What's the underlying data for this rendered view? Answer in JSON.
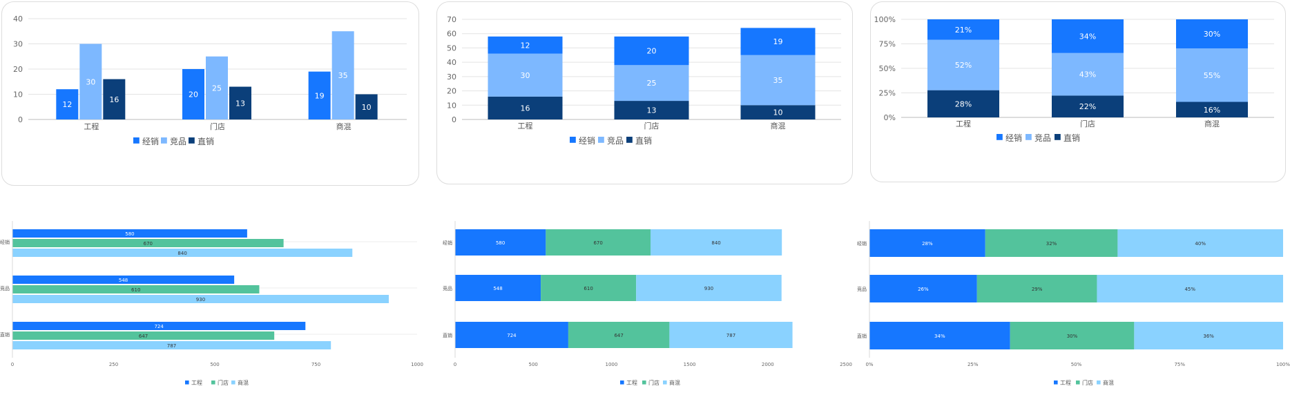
{
  "colors": {
    "blue": "#1677ff",
    "light_blue": "#7db8ff",
    "navy": "#0b3f7a",
    "green": "#53c39c",
    "sky": "#8ad2ff"
  },
  "chart_data": [
    {
      "id": "clustered-column",
      "type": "bar",
      "orientation": "vertical",
      "stacking": "none",
      "categories": [
        "工程",
        "门店",
        "商混"
      ],
      "series": [
        {
          "name": "经销",
          "values": [
            12,
            20,
            19
          ]
        },
        {
          "name": "竞品",
          "values": [
            30,
            25,
            35
          ]
        },
        {
          "name": "直销",
          "values": [
            16,
            13,
            10
          ]
        }
      ],
      "ylim": [
        0,
        40
      ],
      "yticks": [
        "0",
        "10",
        "20",
        "30",
        "40"
      ],
      "grid": true,
      "legend": "bottom"
    },
    {
      "id": "stacked-column",
      "type": "bar",
      "orientation": "vertical",
      "stacking": "stacked",
      "categories": [
        "工程",
        "门店",
        "商混"
      ],
      "series": [
        {
          "name": "直销",
          "values": [
            16,
            13,
            10
          ]
        },
        {
          "name": "竞品",
          "values": [
            30,
            25,
            35
          ]
        },
        {
          "name": "经销",
          "values": [
            12,
            20,
            19
          ]
        }
      ],
      "legend_order": [
        "经销",
        "竞品",
        "直销"
      ],
      "ylim": [
        0,
        70
      ],
      "yticks": [
        "0",
        "10",
        "20",
        "30",
        "40",
        "50",
        "60",
        "70"
      ],
      "grid": true,
      "legend": "bottom"
    },
    {
      "id": "percent-stacked-column",
      "type": "bar",
      "orientation": "vertical",
      "stacking": "percent",
      "categories": [
        "工程",
        "门店",
        "商混"
      ],
      "series": [
        {
          "name": "直销",
          "values": [
            28,
            22,
            16
          ],
          "labels": [
            "28%",
            "22%",
            "16%"
          ]
        },
        {
          "name": "竞品",
          "values": [
            52,
            43,
            55
          ],
          "labels": [
            "52%",
            "43%",
            "55%"
          ]
        },
        {
          "name": "经销",
          "values": [
            21,
            34,
            30
          ],
          "labels": [
            "21%",
            "34%",
            "30%"
          ]
        }
      ],
      "legend_order": [
        "经销",
        "竞品",
        "直销"
      ],
      "ylim": [
        0,
        100
      ],
      "yticks": [
        "0%",
        "25%",
        "50%",
        "75%",
        "100%"
      ],
      "grid": true,
      "legend": "bottom"
    },
    {
      "id": "clustered-bar",
      "type": "bar",
      "orientation": "horizontal",
      "stacking": "none",
      "categories": [
        "经销",
        "竞品",
        "直销"
      ],
      "series": [
        {
          "name": "工程",
          "values": [
            580,
            548,
            724
          ]
        },
        {
          "name": "门店",
          "values": [
            670,
            610,
            647
          ]
        },
        {
          "name": "商混",
          "values": [
            840,
            930,
            787
          ]
        }
      ],
      "xlim": [
        0,
        1000
      ],
      "xticks": [
        "0",
        "250",
        "500",
        "750",
        "1000"
      ],
      "grid": true,
      "legend": "bottom"
    },
    {
      "id": "stacked-bar",
      "type": "bar",
      "orientation": "horizontal",
      "stacking": "stacked",
      "categories": [
        "经销",
        "竞品",
        "直销"
      ],
      "series": [
        {
          "name": "工程",
          "values": [
            580,
            548,
            724
          ]
        },
        {
          "name": "门店",
          "values": [
            670,
            610,
            647
          ]
        },
        {
          "name": "商混",
          "values": [
            840,
            930,
            787
          ]
        }
      ],
      "xlim": [
        0,
        2500
      ],
      "xticks": [
        "0",
        "500",
        "1000",
        "1500",
        "2000",
        "2500"
      ],
      "grid": true,
      "legend": "bottom"
    },
    {
      "id": "percent-stacked-bar",
      "type": "bar",
      "orientation": "horizontal",
      "stacking": "percent",
      "categories": [
        "经销",
        "竞品",
        "直销"
      ],
      "series": [
        {
          "name": "工程",
          "values": [
            28,
            26,
            34
          ],
          "labels": [
            "28%",
            "26%",
            "34%"
          ]
        },
        {
          "name": "门店",
          "values": [
            32,
            29,
            30
          ],
          "labels": [
            "32%",
            "29%",
            "30%"
          ]
        },
        {
          "name": "商混",
          "values": [
            40,
            45,
            36
          ],
          "labels": [
            "40%",
            "45%",
            "36%"
          ]
        }
      ],
      "xlim": [
        0,
        100
      ],
      "xticks": [
        "0%",
        "25%",
        "50%",
        "75%",
        "100%"
      ],
      "grid": true,
      "legend": "bottom"
    }
  ]
}
